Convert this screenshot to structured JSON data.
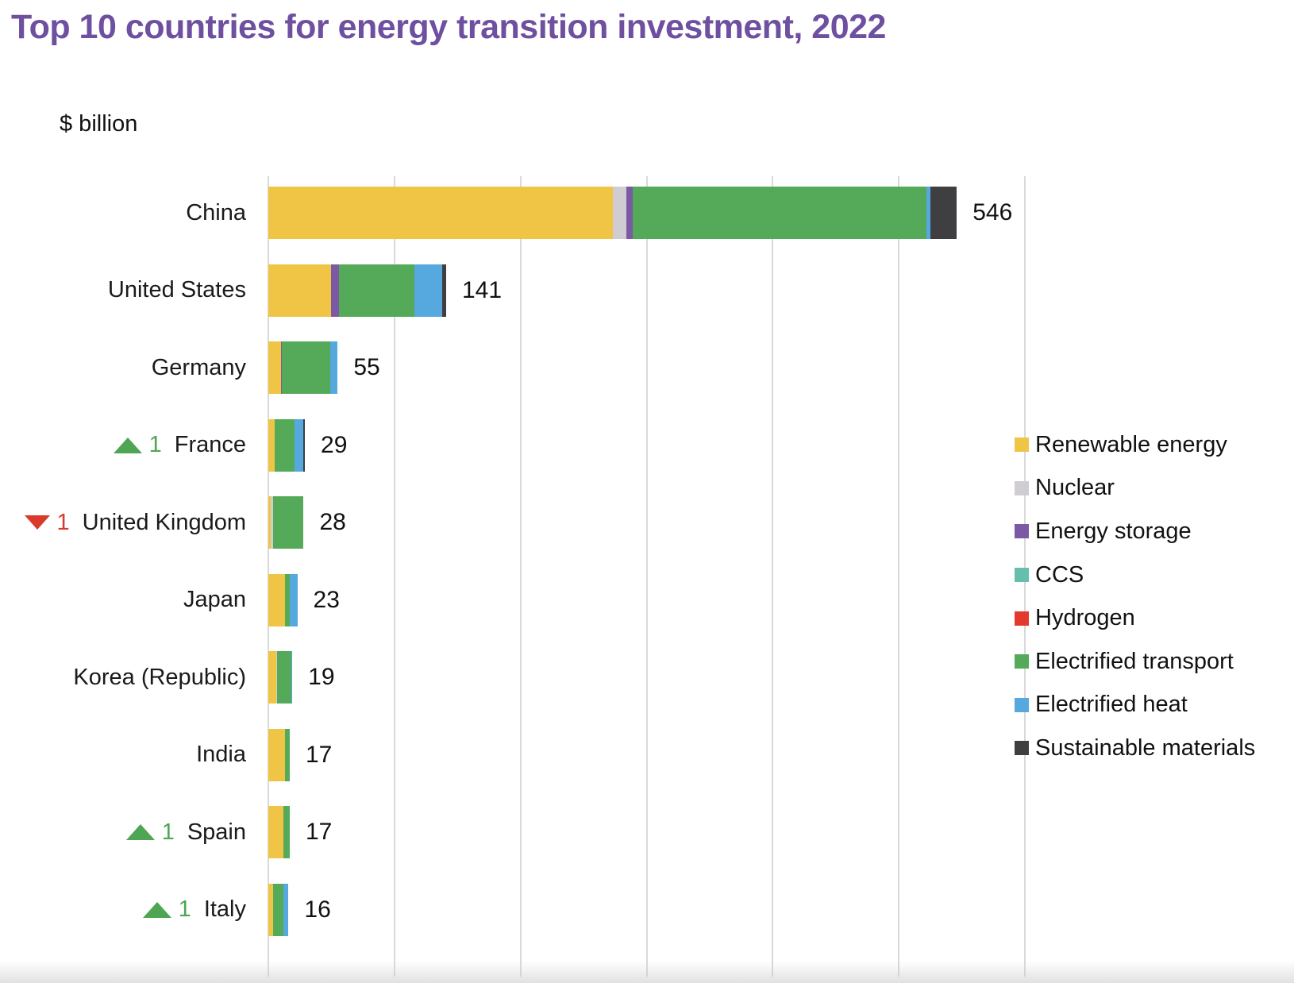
{
  "title": "Top 10 countries for energy transition investment, 2022",
  "title_color": "#6e4fa0",
  "axis": {
    "unit_label": "$ billion",
    "min": 0,
    "max": 600,
    "tick_interval": 100,
    "gridlines": [
      0,
      100,
      200,
      300,
      400,
      500,
      600
    ]
  },
  "markers": {
    "up_color": "#4ea553",
    "down_color": "#d93a2b"
  },
  "chart_data": {
    "type": "bar",
    "orientation": "horizontal",
    "stacked": true,
    "title": "Top 10 countries for energy transition investment, 2022",
    "ylabel": "$ billion",
    "xlim": [
      0,
      600
    ],
    "grid": true,
    "legend_position": "right",
    "categories": [
      "China",
      "United States",
      "Germany",
      "France",
      "United Kingdom",
      "Japan",
      "Korea (Republic)",
      "India",
      "Spain",
      "Italy"
    ],
    "totals": [
      546,
      141,
      55,
      29,
      28,
      23,
      19,
      17,
      17,
      16
    ],
    "rank_changes": [
      null,
      null,
      null,
      {
        "direction": "up",
        "places": 1
      },
      {
        "direction": "down",
        "places": 1
      },
      null,
      null,
      null,
      {
        "direction": "up",
        "places": 1
      },
      {
        "direction": "up",
        "places": 1
      }
    ],
    "series": [
      {
        "name": "Renewable energy",
        "key": "renewable",
        "color": "#f0c445",
        "values": [
          273,
          50,
          10,
          5,
          2,
          13,
          6,
          13,
          12,
          4
        ]
      },
      {
        "name": "Nuclear",
        "key": "nuclear",
        "color": "#cfcdd1",
        "values": [
          11,
          0,
          0,
          0,
          2,
          0,
          1,
          0,
          0,
          0
        ]
      },
      {
        "name": "Energy storage",
        "key": "storage",
        "color": "#7c59a4",
        "values": [
          5,
          6,
          1,
          0,
          0,
          0,
          0,
          0,
          0,
          0
        ]
      },
      {
        "name": "CCS",
        "key": "ccs",
        "color": "#66bfad",
        "values": [
          0,
          0,
          0,
          0,
          0,
          0,
          0,
          0,
          0,
          0
        ]
      },
      {
        "name": "Hydrogen",
        "key": "hydrogen",
        "color": "#e23b2e",
        "values": [
          0,
          0,
          0,
          0,
          0,
          0,
          0,
          0,
          0,
          0
        ]
      },
      {
        "name": "Electrified transport",
        "key": "transport",
        "color": "#55aa59",
        "values": [
          233,
          60,
          38,
          16,
          24,
          4,
          11,
          4,
          5,
          8
        ]
      },
      {
        "name": "Electrified heat",
        "key": "heat",
        "color": "#55a9de",
        "values": [
          3,
          22,
          6,
          7,
          0,
          6,
          1,
          0,
          0,
          4
        ]
      },
      {
        "name": "Sustainable materials",
        "key": "materials",
        "color": "#3f3f41",
        "values": [
          21,
          3,
          0,
          1,
          0,
          0,
          0,
          0,
          0,
          0
        ]
      }
    ]
  }
}
